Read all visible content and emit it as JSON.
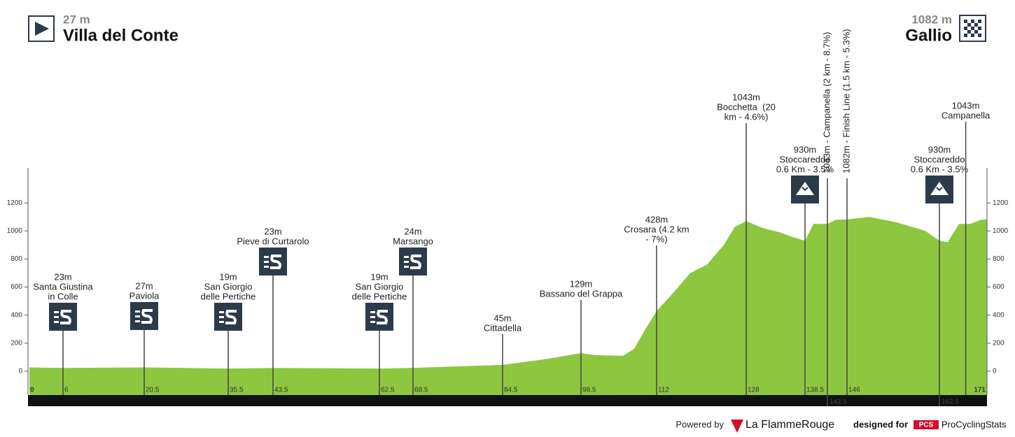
{
  "header": {
    "start_alt": "27 m",
    "start": "Villa del Conte",
    "finish_alt": "1082 m",
    "finish": "Gallio"
  },
  "chart_data": {
    "type": "area",
    "color": "#8dc63f",
    "x": [
      0,
      6,
      20.5,
      35.5,
      43.5,
      62.5,
      68.5,
      84.5,
      92,
      98.5,
      101,
      106,
      108,
      110,
      112,
      115,
      118,
      121,
      124,
      126,
      128,
      131,
      134,
      136,
      138.5,
      140,
      142.5,
      144,
      146,
      150,
      155,
      160,
      162.5,
      164,
      166,
      168,
      170,
      171
    ],
    "values": [
      27,
      23,
      27,
      19,
      23,
      19,
      24,
      45,
      85,
      129,
      115,
      110,
      160,
      300,
      428,
      560,
      700,
      760,
      900,
      1030,
      1070,
      1020,
      990,
      960,
      930,
      1050,
      1050,
      1080,
      1082,
      1100,
      1060,
      1000,
      930,
      920,
      1050,
      1050,
      1080,
      1082
    ],
    "xlim": [
      0,
      171
    ],
    "ylim": [
      -170,
      1450
    ],
    "yticks": [
      0,
      200,
      400,
      600,
      800,
      1000,
      1200
    ],
    "xticks": [
      0,
      6,
      20.5,
      35.5,
      43.5,
      62.5,
      68.5,
      84.5,
      98.5,
      112,
      128,
      138.5,
      146,
      171
    ],
    "bar_ticks": [
      142.5,
      162.5
    ],
    "waypoints": [
      {
        "km": 6,
        "altitude": "23m",
        "name": [
          "Santa Giustina",
          "in Colle"
        ],
        "icon": "sprint"
      },
      {
        "km": 20.5,
        "altitude": "27m",
        "name": [
          "Paviola"
        ],
        "icon": "sprint"
      },
      {
        "km": 35.5,
        "altitude": "19m",
        "name": [
          "San Giorgio",
          "delle Pertiche"
        ],
        "icon": "sprint"
      },
      {
        "km": 43.5,
        "altitude": "23m",
        "name": [
          "Pieve di Curtarolo"
        ],
        "icon": "sprint"
      },
      {
        "km": 62.5,
        "altitude": "19m",
        "name": [
          "San Giorgio",
          "delle Pertiche"
        ],
        "icon": "sprint"
      },
      {
        "km": 68.5,
        "altitude": "24m",
        "name": [
          "Marsango"
        ],
        "icon": "sprint"
      },
      {
        "km": 84.5,
        "altitude": "45m",
        "name": [
          "Cittadella"
        ]
      },
      {
        "km": 98.5,
        "altitude": "129m",
        "name": [
          "Bassano del Grappa"
        ]
      },
      {
        "km": 112,
        "altitude": "428m",
        "name": [
          "Crosara (4.2 km",
          "- 7%)"
        ]
      },
      {
        "km": 128,
        "altitude": "1043m",
        "name": [
          "Bocchetta  (20",
          "km - 4.6%)"
        ]
      },
      {
        "km": 138.5,
        "altitude": "930m",
        "name": [
          "Stoccareddo",
          "0.6 Km - 3.5%"
        ],
        "icon": "climb"
      },
      {
        "km": 162.5,
        "altitude": "930m",
        "name": [
          "Stoccareddo",
          "0.6 Km - 3.5%"
        ],
        "icon": "climb"
      },
      {
        "km": 167.2,
        "altitude": "1043m",
        "name": [
          "Campanella"
        ]
      }
    ],
    "vertical_labels": [
      {
        "km": 142.5,
        "text": "1043m - Campanella (2 km - 8.7%)"
      },
      {
        "km": 146,
        "text": "1082m - Finish Line (1.5 km - 5.3%)"
      }
    ]
  },
  "footer": {
    "powered": "Powered by",
    "brand": "La FlammeRouge",
    "designed": "designed for",
    "pcs": "PCS",
    "site": "ProCyclingStats"
  }
}
